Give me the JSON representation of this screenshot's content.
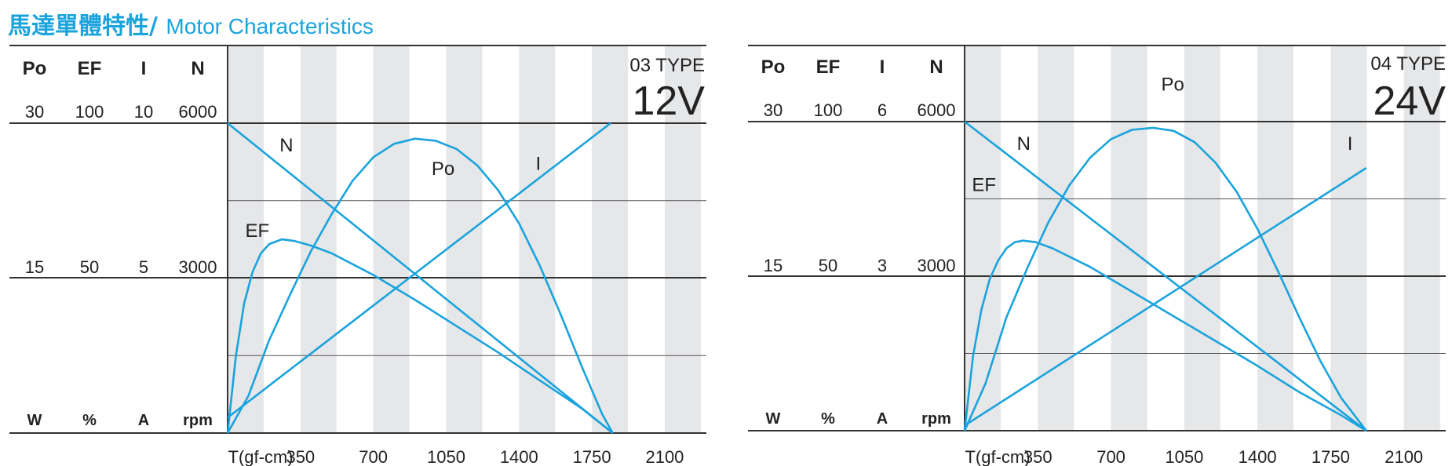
{
  "header": {
    "title_cn": "馬達單體特性",
    "title_sep": "/",
    "title_en": "Motor Characteristics"
  },
  "colors": {
    "accent": "#1aa3dd",
    "band": "#e6e7e9",
    "axis": "#444444"
  },
  "chart_data": [
    {
      "type": "line",
      "type_label": "03 TYPE",
      "voltage": "12V",
      "xlabel": "T(gf-cm)",
      "x_ticks": [
        "350",
        "700",
        "1050",
        "1400",
        "1750",
        "2100"
      ],
      "x_tick_values": [
        350,
        700,
        1050,
        1400,
        1750,
        2100
      ],
      "xlim": [
        0,
        2300
      ],
      "columns": [
        {
          "name": "Po",
          "unit": "W",
          "top": "30",
          "mid": "15"
        },
        {
          "name": "EF",
          "unit": "%",
          "top": "100",
          "mid": "50"
        },
        {
          "name": "I",
          "unit": "A",
          "top": "10",
          "mid": "5"
        },
        {
          "name": "N",
          "unit": "rpm",
          "top": "6000",
          "mid": "3000"
        }
      ],
      "series": [
        {
          "name": "N",
          "label_at": [
            250,
            5450
          ],
          "x": [
            0,
            1850
          ],
          "y": [
            6000,
            0
          ]
        },
        {
          "name": "I",
          "label_at": [
            1480,
            5100
          ],
          "x": [
            0,
            1840
          ],
          "y": [
            0.5,
            10
          ]
        },
        {
          "name": "Po",
          "label_at": [
            980,
            5000
          ],
          "x": [
            0,
            100,
            200,
            300,
            400,
            500,
            600,
            700,
            800,
            900,
            1000,
            1100,
            1200,
            1300,
            1400,
            1500,
            1600,
            1700,
            1800,
            1850
          ],
          "y": [
            0,
            3.6,
            9.0,
            13.4,
            17.6,
            21.2,
            24.4,
            26.7,
            28.0,
            28.5,
            28.3,
            27.5,
            25.9,
            23.5,
            20.3,
            16.2,
            11.5,
            6.5,
            1.8,
            0
          ]
        },
        {
          "name": "EF",
          "label_at": [
            85,
            3800
          ],
          "x": [
            0,
            40,
            80,
            120,
            160,
            200,
            260,
            320,
            400,
            500,
            700,
            900,
            1100,
            1300,
            1500,
            1700,
            1850
          ],
          "y": [
            0,
            25,
            42,
            52,
            58,
            61,
            62.5,
            62,
            60.5,
            58,
            51,
            43,
            34.5,
            26,
            17,
            8,
            0
          ]
        }
      ]
    },
    {
      "type": "line",
      "type_label": "04 TYPE",
      "voltage": "24V",
      "xlabel": "T(gf-cm)",
      "x_ticks": [
        "350",
        "700",
        "1050",
        "1400",
        "1750",
        "2100"
      ],
      "x_tick_values": [
        350,
        700,
        1050,
        1400,
        1750,
        2100
      ],
      "xlim": [
        0,
        2300
      ],
      "columns": [
        {
          "name": "Po",
          "unit": "W",
          "top": "30",
          "mid": "15"
        },
        {
          "name": "EF",
          "unit": "%",
          "top": "100",
          "mid": "50"
        },
        {
          "name": "I",
          "unit": "A",
          "top": "6",
          "mid": "3"
        },
        {
          "name": "N",
          "unit": "rpm",
          "top": "6000",
          "mid": "3000"
        }
      ],
      "series": [
        {
          "name": "N",
          "label_at": [
            250,
            5450
          ],
          "x": [
            0,
            1920
          ],
          "y": [
            6000,
            0
          ]
        },
        {
          "name": "I",
          "label_at": [
            1830,
            5450
          ],
          "x": [
            0,
            1920
          ],
          "y": [
            0.1,
            5.1
          ]
        },
        {
          "name": "Po",
          "label_at": [
            940,
            6600
          ],
          "x": [
            0,
            100,
            200,
            300,
            400,
            500,
            600,
            700,
            800,
            900,
            1000,
            1100,
            1200,
            1300,
            1400,
            1500,
            1600,
            1700,
            1800,
            1920
          ],
          "y": [
            0,
            4.6,
            11.0,
            15.8,
            20.2,
            23.8,
            26.5,
            28.3,
            29.2,
            29.4,
            29.1,
            28.0,
            26.0,
            23.2,
            19.6,
            15.4,
            11.0,
            6.8,
            3.2,
            0
          ]
        },
        {
          "name": "EF",
          "label_at": [
            35,
            4650
          ],
          "x": [
            0,
            40,
            80,
            120,
            160,
            200,
            240,
            280,
            340,
            420,
            600,
            800,
            1000,
            1200,
            1400,
            1600,
            1800,
            1920
          ],
          "y": [
            0,
            24,
            39,
            49,
            55,
            59,
            61,
            61.5,
            61,
            59,
            53,
            45,
            37,
            29,
            21,
            12.5,
            5,
            0
          ]
        }
      ]
    }
  ]
}
